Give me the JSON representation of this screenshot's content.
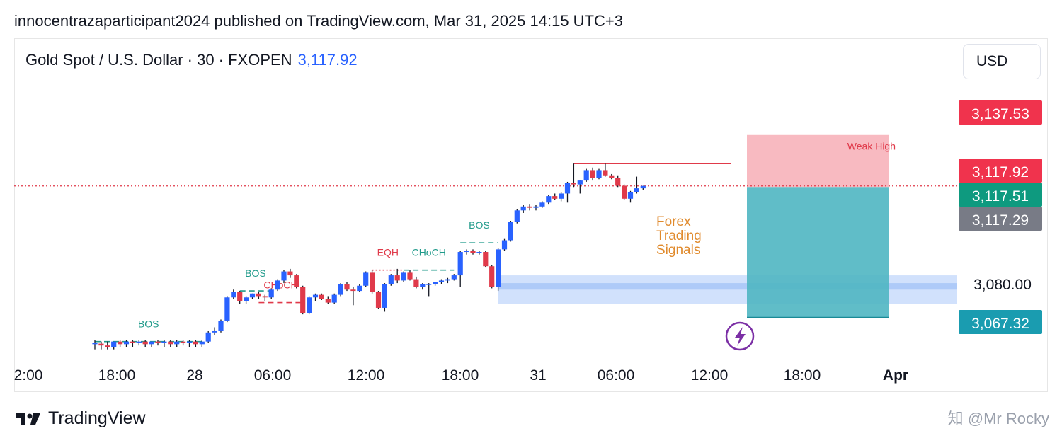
{
  "header": {
    "caption": "innocentrazaparticipant2024 published on TradingView.com, Mar 31, 2025 14:15 UTC+3"
  },
  "legend": {
    "symbol": "Gold Spot / U.S. Dollar · 30 · FXOPEN",
    "price": "3,117.92"
  },
  "currency_button": "USD",
  "footer": {
    "brand": "TradingView",
    "watermark": "知 @Mr Rocky"
  },
  "colors": {
    "up": "#2962ff",
    "down": "#e03a4a",
    "teal": "#1f9a8a",
    "stop_zone": "#f7b3ba",
    "target_zone": "#4fb6c2",
    "demand_zone": "#c9dcfb",
    "orange_text": "#e08a2c"
  },
  "chart_data": {
    "type": "candlestick",
    "symbol": "Gold Spot / U.S. Dollar",
    "interval": "30",
    "x_ticks": [
      "2:00",
      "18:00",
      "28",
      "06:00",
      "12:00",
      "18:00",
      "31",
      "06:00",
      "12:00",
      "18:00",
      "Apr"
    ],
    "price_axis_labels": [
      {
        "value": 3137.53,
        "text": "3,137.53",
        "color": "#f0334d"
      },
      {
        "value": 3117.92,
        "text": "3,117.92",
        "color": "#f0334d"
      },
      {
        "value": 3117.51,
        "text": "3,117.51",
        "color": "#0e9a7f"
      },
      {
        "value": 3117.29,
        "text": "3,117.29",
        "color": "#787b86"
      },
      {
        "value": 3080.0,
        "text": "3,080.00",
        "color": null
      },
      {
        "value": 3067.32,
        "text": "3,067.32",
        "color": "#1a9cb0"
      }
    ],
    "ylim": [
      3056,
      3150
    ],
    "current_price": 3117.92,
    "candles": [
      {
        "o": 3057.0,
        "h": 3058.5,
        "l": 3055.0,
        "c": 3057.5
      },
      {
        "o": 3057.2,
        "h": 3058.0,
        "l": 3055.0,
        "c": 3056.5
      },
      {
        "o": 3056.5,
        "h": 3058.0,
        "l": 3055.0,
        "c": 3056.0
      },
      {
        "o": 3056.0,
        "h": 3058.0,
        "l": 3055.0,
        "c": 3058.0
      },
      {
        "o": 3058.0,
        "h": 3058.5,
        "l": 3056.0,
        "c": 3057.0
      },
      {
        "o": 3057.0,
        "h": 3058.5,
        "l": 3056.0,
        "c": 3058.0
      },
      {
        "o": 3058.0,
        "h": 3058.5,
        "l": 3056.0,
        "c": 3057.5
      },
      {
        "o": 3057.5,
        "h": 3058.5,
        "l": 3056.5,
        "c": 3058.0
      },
      {
        "o": 3058.0,
        "h": 3058.5,
        "l": 3056.0,
        "c": 3057.0
      },
      {
        "o": 3057.0,
        "h": 3058.0,
        "l": 3056.0,
        "c": 3058.0
      },
      {
        "o": 3058.0,
        "h": 3058.5,
        "l": 3056.5,
        "c": 3057.5
      },
      {
        "o": 3057.5,
        "h": 3058.5,
        "l": 3056.0,
        "c": 3058.0
      },
      {
        "o": 3058.0,
        "h": 3058.5,
        "l": 3056.0,
        "c": 3057.0
      },
      {
        "o": 3057.0,
        "h": 3058.5,
        "l": 3056.0,
        "c": 3058.0
      },
      {
        "o": 3058.0,
        "h": 3058.5,
        "l": 3056.5,
        "c": 3057.5
      },
      {
        "o": 3057.5,
        "h": 3058.5,
        "l": 3056.0,
        "c": 3058.0
      },
      {
        "o": 3058.0,
        "h": 3058.5,
        "l": 3056.0,
        "c": 3057.0
      },
      {
        "o": 3057.0,
        "h": 3058.5,
        "l": 3056.0,
        "c": 3058.0
      },
      {
        "o": 3058.0,
        "h": 3062.0,
        "l": 3057.5,
        "c": 3061.5
      },
      {
        "o": 3061.5,
        "h": 3063.5,
        "l": 3060.5,
        "c": 3062.0
      },
      {
        "o": 3062.0,
        "h": 3066.5,
        "l": 3061.5,
        "c": 3066.0
      },
      {
        "o": 3066.0,
        "h": 3075.5,
        "l": 3065.5,
        "c": 3075.0
      },
      {
        "o": 3075.0,
        "h": 3078.0,
        "l": 3074.5,
        "c": 3077.0
      },
      {
        "o": 3077.0,
        "h": 3077.5,
        "l": 3072.5,
        "c": 3073.5
      },
      {
        "o": 3073.5,
        "h": 3075.5,
        "l": 3072.5,
        "c": 3075.0
      },
      {
        "o": 3075.0,
        "h": 3076.5,
        "l": 3074.5,
        "c": 3076.5
      },
      {
        "o": 3076.5,
        "h": 3077.0,
        "l": 3074.5,
        "c": 3075.5
      },
      {
        "o": 3075.5,
        "h": 3076.0,
        "l": 3073.5,
        "c": 3075.0
      },
      {
        "o": 3075.0,
        "h": 3078.5,
        "l": 3074.5,
        "c": 3078.0
      },
      {
        "o": 3078.0,
        "h": 3082.0,
        "l": 3077.5,
        "c": 3081.5
      },
      {
        "o": 3081.5,
        "h": 3085.5,
        "l": 3080.5,
        "c": 3085.0
      },
      {
        "o": 3085.0,
        "h": 3086.0,
        "l": 3082.5,
        "c": 3083.5
      },
      {
        "o": 3083.5,
        "h": 3084.0,
        "l": 3078.5,
        "c": 3079.0
      },
      {
        "o": 3079.0,
        "h": 3079.5,
        "l": 3068.5,
        "c": 3069.0
      },
      {
        "o": 3069.0,
        "h": 3075.5,
        "l": 3068.5,
        "c": 3075.0
      },
      {
        "o": 3075.0,
        "h": 3076.5,
        "l": 3073.5,
        "c": 3076.0
      },
      {
        "o": 3076.0,
        "h": 3076.5,
        "l": 3074.0,
        "c": 3074.5
      },
      {
        "o": 3074.5,
        "h": 3075.5,
        "l": 3072.5,
        "c": 3073.0
      },
      {
        "o": 3073.0,
        "h": 3076.5,
        "l": 3072.5,
        "c": 3076.0
      },
      {
        "o": 3076.0,
        "h": 3080.5,
        "l": 3075.5,
        "c": 3080.0
      },
      {
        "o": 3080.0,
        "h": 3081.0,
        "l": 3077.5,
        "c": 3078.0
      },
      {
        "o": 3078.0,
        "h": 3079.0,
        "l": 3072.0,
        "c": 3077.5
      },
      {
        "o": 3077.5,
        "h": 3080.0,
        "l": 3077.0,
        "c": 3079.5
      },
      {
        "o": 3079.5,
        "h": 3085.0,
        "l": 3079.0,
        "c": 3084.5
      },
      {
        "o": 3084.5,
        "h": 3085.5,
        "l": 3076.5,
        "c": 3077.0
      },
      {
        "o": 3077.0,
        "h": 3077.5,
        "l": 3070.5,
        "c": 3071.0
      },
      {
        "o": 3071.0,
        "h": 3080.5,
        "l": 3069.5,
        "c": 3080.0
      },
      {
        "o": 3080.0,
        "h": 3084.0,
        "l": 3079.5,
        "c": 3083.5
      },
      {
        "o": 3083.5,
        "h": 3086.0,
        "l": 3080.5,
        "c": 3081.5
      },
      {
        "o": 3081.5,
        "h": 3085.0,
        "l": 3081.0,
        "c": 3084.5
      },
      {
        "o": 3084.5,
        "h": 3085.5,
        "l": 3081.5,
        "c": 3082.0
      },
      {
        "o": 3082.0,
        "h": 3083.0,
        "l": 3078.5,
        "c": 3079.0
      },
      {
        "o": 3079.0,
        "h": 3080.5,
        "l": 3078.0,
        "c": 3080.0
      },
      {
        "o": 3080.0,
        "h": 3080.5,
        "l": 3075.5,
        "c": 3080.2
      },
      {
        "o": 3080.2,
        "h": 3081.0,
        "l": 3079.5,
        "c": 3080.8
      },
      {
        "o": 3080.8,
        "h": 3082.0,
        "l": 3080.0,
        "c": 3081.5
      },
      {
        "o": 3081.5,
        "h": 3082.5,
        "l": 3080.5,
        "c": 3082.0
      },
      {
        "o": 3082.0,
        "h": 3084.0,
        "l": 3081.5,
        "c": 3083.5
      },
      {
        "o": 3083.5,
        "h": 3093.0,
        "l": 3079.0,
        "c": 3092.5
      },
      {
        "o": 3092.5,
        "h": 3093.5,
        "l": 3091.5,
        "c": 3093.0
      },
      {
        "o": 3093.0,
        "h": 3093.5,
        "l": 3091.5,
        "c": 3092.0
      },
      {
        "o": 3092.0,
        "h": 3093.0,
        "l": 3091.5,
        "c": 3092.5
      },
      {
        "o": 3092.5,
        "h": 3093.0,
        "l": 3086.5,
        "c": 3087.0
      },
      {
        "o": 3087.0,
        "h": 3087.5,
        "l": 3078.5,
        "c": 3079.0
      },
      {
        "o": 3079.0,
        "h": 3094.0,
        "l": 3077.5,
        "c": 3093.5
      },
      {
        "o": 3093.5,
        "h": 3097.5,
        "l": 3093.0,
        "c": 3097.0
      },
      {
        "o": 3097.0,
        "h": 3104.5,
        "l": 3096.5,
        "c": 3104.0
      },
      {
        "o": 3104.0,
        "h": 3109.0,
        "l": 3103.5,
        "c": 3108.5
      },
      {
        "o": 3108.5,
        "h": 3110.5,
        "l": 3107.5,
        "c": 3110.0
      },
      {
        "o": 3110.0,
        "h": 3111.0,
        "l": 3108.5,
        "c": 3109.5
      },
      {
        "o": 3109.5,
        "h": 3110.5,
        "l": 3108.5,
        "c": 3110.0
      },
      {
        "o": 3110.0,
        "h": 3112.0,
        "l": 3109.5,
        "c": 3111.5
      },
      {
        "o": 3111.5,
        "h": 3114.5,
        "l": 3111.0,
        "c": 3114.0
      },
      {
        "o": 3114.0,
        "h": 3115.0,
        "l": 3112.5,
        "c": 3113.0
      },
      {
        "o": 3113.0,
        "h": 3115.5,
        "l": 3112.0,
        "c": 3115.0
      },
      {
        "o": 3115.0,
        "h": 3119.5,
        "l": 3111.5,
        "c": 3119.0
      },
      {
        "o": 3119.0,
        "h": 3126.5,
        "l": 3117.5,
        "c": 3118.5
      },
      {
        "o": 3118.5,
        "h": 3120.0,
        "l": 3115.0,
        "c": 3120.0
      },
      {
        "o": 3120.0,
        "h": 3124.5,
        "l": 3119.5,
        "c": 3124.0
      },
      {
        "o": 3124.0,
        "h": 3125.0,
        "l": 3120.0,
        "c": 3121.0
      },
      {
        "o": 3121.0,
        "h": 3124.5,
        "l": 3120.5,
        "c": 3124.0
      },
      {
        "o": 3124.0,
        "h": 3126.5,
        "l": 3121.5,
        "c": 3122.0
      },
      {
        "o": 3122.0,
        "h": 3122.5,
        "l": 3120.5,
        "c": 3121.0
      },
      {
        "o": 3121.0,
        "h": 3122.0,
        "l": 3117.5,
        "c": 3118.0
      },
      {
        "o": 3118.0,
        "h": 3118.5,
        "l": 3112.5,
        "c": 3113.0
      },
      {
        "o": 3113.0,
        "h": 3116.0,
        "l": 3111.5,
        "c": 3115.5
      },
      {
        "o": 3115.5,
        "h": 3121.5,
        "l": 3115.0,
        "c": 3117.0
      },
      {
        "o": 3117.0,
        "h": 3118.0,
        "l": 3116.5,
        "c": 3117.92
      }
    ],
    "annotations": [
      {
        "text": "BOS",
        "color": "#1f9a8a",
        "price": 3058.0,
        "from": 0,
        "to": 17,
        "style": "dashed"
      },
      {
        "text": "BOS",
        "color": "#1f9a8a",
        "price": 3077.5,
        "from": 23,
        "to": 28,
        "style": "dashed"
      },
      {
        "text": "CHoCH",
        "color": "#e03a4a",
        "price": 3073.0,
        "from": 26,
        "to": 33,
        "style": "dashed"
      },
      {
        "text": "EQH",
        "color": "#e03a4a",
        "price": 3085.5,
        "from": 44,
        "to": 49,
        "style": "dotted"
      },
      {
        "text": "CHoCH",
        "color": "#1f9a8a",
        "price": 3085.5,
        "from": 49,
        "to": 57,
        "style": "dashed"
      },
      {
        "text": "BOS",
        "color": "#1f9a8a",
        "price": 3096.0,
        "from": 58,
        "to": 64,
        "style": "dashed"
      },
      {
        "text": "Weak High",
        "color": "#e03a4a",
        "price": 3126.5,
        "from": 76,
        "to": 101,
        "style": "solid"
      }
    ],
    "zones": {
      "demand": {
        "top": 3083.5,
        "bottom": 3072.5,
        "inner_top": 3080.5,
        "inner_bottom": 3078.0
      },
      "stop": {
        "top": 3137.53,
        "bottom": 3117.51
      },
      "target": {
        "top": 3117.51,
        "bottom": 3067.32
      }
    },
    "overlay_text": "Forex\nTrading\nSignals"
  }
}
